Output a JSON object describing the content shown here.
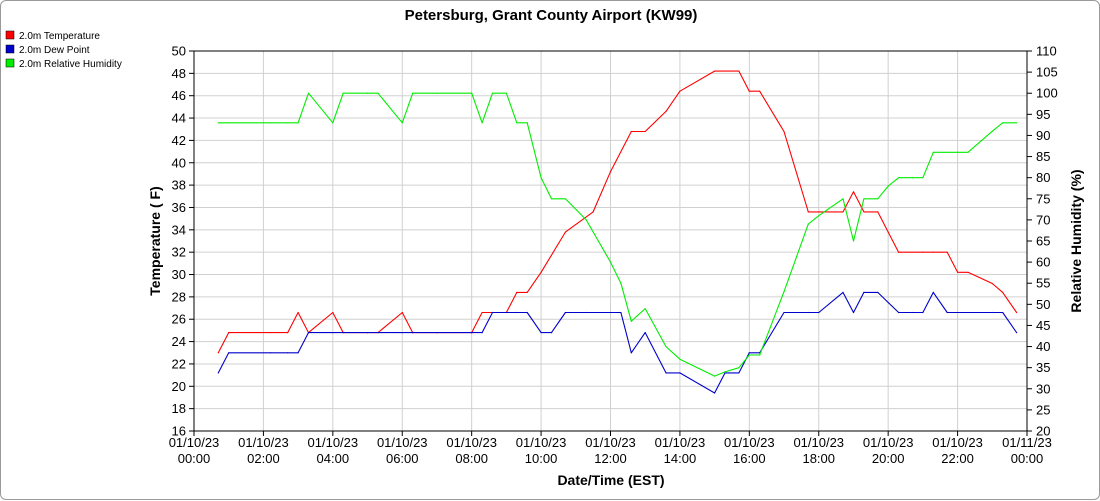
{
  "chart_data": {
    "type": "line",
    "title": "Petersburg, Grant County Airport (KW99)",
    "xlabel": "Date/Time (EST)",
    "ylabel": "Temperature ( F)",
    "y2label": "Relative Humidity (%)",
    "xlim": [
      0,
      24
    ],
    "ylim": [
      16,
      50
    ],
    "y2lim": [
      20,
      110
    ],
    "grid": true,
    "legend_position": "top-left",
    "x_ticks": [
      {
        "x": 0,
        "line1": "01/10/23",
        "line2": "00:00"
      },
      {
        "x": 2,
        "line1": "01/10/23",
        "line2": "02:00"
      },
      {
        "x": 4,
        "line1": "01/10/23",
        "line2": "04:00"
      },
      {
        "x": 6,
        "line1": "01/10/23",
        "line2": "06:00"
      },
      {
        "x": 8,
        "line1": "01/10/23",
        "line2": "08:00"
      },
      {
        "x": 10,
        "line1": "01/10/23",
        "line2": "10:00"
      },
      {
        "x": 12,
        "line1": "01/10/23",
        "line2": "12:00"
      },
      {
        "x": 14,
        "line1": "01/10/23",
        "line2": "14:00"
      },
      {
        "x": 16,
        "line1": "01/10/23",
        "line2": "16:00"
      },
      {
        "x": 18,
        "line1": "01/10/23",
        "line2": "18:00"
      },
      {
        "x": 20,
        "line1": "01/10/23",
        "line2": "20:00"
      },
      {
        "x": 22,
        "line1": "01/10/23",
        "line2": "22:00"
      },
      {
        "x": 24,
        "line1": "01/11/23",
        "line2": "00:00"
      }
    ],
    "y_ticks": [
      "16",
      "18",
      "20",
      "22",
      "24",
      "26",
      "28",
      "30",
      "32",
      "34",
      "36",
      "38",
      "40",
      "42",
      "44",
      "46",
      "48",
      "50"
    ],
    "y2_ticks": [
      "20",
      "25",
      "30",
      "35",
      "40",
      "45",
      "50",
      "55",
      "60",
      "65",
      "70",
      "75",
      "80",
      "85",
      "90",
      "95",
      "100",
      "105",
      "110"
    ],
    "series": [
      {
        "name": "2.0m Temperature",
        "color": "#ff0000",
        "axis": "left",
        "x": [
          0.7,
          1.0,
          2.2,
          2.7,
          3.0,
          3.3,
          4.0,
          4.3,
          5.0,
          5.3,
          6.0,
          6.3,
          7.0,
          8.0,
          8.3,
          8.6,
          9.0,
          9.3,
          9.6,
          10.0,
          10.7,
          11.5,
          12.0,
          12.6,
          13.0,
          13.6,
          14.0,
          15.0,
          15.7,
          16.0,
          16.3,
          17.0,
          17.7,
          18.0,
          18.7,
          19.0,
          19.3,
          19.7,
          20.0,
          20.3,
          21.0,
          21.3,
          21.7,
          22.0,
          22.3,
          23.0,
          23.3,
          23.7
        ],
        "values": [
          23.0,
          24.8,
          24.8,
          24.8,
          26.6,
          24.8,
          26.6,
          24.8,
          24.8,
          24.8,
          26.6,
          24.8,
          24.8,
          24.8,
          26.6,
          26.6,
          26.6,
          28.4,
          28.4,
          30.2,
          33.8,
          35.6,
          39.2,
          42.8,
          42.8,
          44.6,
          46.4,
          48.2,
          48.2,
          46.4,
          46.4,
          42.8,
          35.6,
          35.6,
          35.6,
          37.4,
          35.6,
          35.6,
          33.8,
          32.0,
          32.0,
          32.0,
          32.0,
          30.2,
          30.2,
          29.2,
          28.4,
          26.6
        ]
      },
      {
        "name": "2.0m Dew Point",
        "color": "#0000cc",
        "axis": "left",
        "x": [
          0.7,
          1.0,
          2.2,
          2.7,
          3.0,
          3.3,
          4.0,
          4.3,
          5.0,
          5.3,
          6.0,
          6.3,
          7.0,
          8.0,
          8.3,
          8.6,
          9.0,
          9.3,
          9.6,
          10.0,
          10.3,
          10.7,
          11.3,
          12.0,
          12.3,
          12.6,
          13.0,
          13.6,
          14.0,
          15.0,
          15.3,
          15.7,
          16.0,
          16.3,
          17.0,
          17.7,
          18.0,
          18.7,
          19.0,
          19.3,
          19.7,
          20.0,
          20.3,
          20.7,
          21.0,
          21.3,
          21.7,
          22.0,
          22.3,
          23.0,
          23.3,
          23.7
        ],
        "values": [
          21.2,
          23.0,
          23.0,
          23.0,
          23.0,
          24.8,
          24.8,
          24.8,
          24.8,
          24.8,
          24.8,
          24.8,
          24.8,
          24.8,
          24.8,
          26.6,
          26.6,
          26.6,
          26.6,
          24.8,
          24.8,
          26.6,
          26.6,
          26.6,
          26.6,
          23.0,
          24.8,
          21.2,
          21.2,
          19.4,
          21.2,
          21.2,
          23.0,
          23.0,
          26.6,
          26.6,
          26.6,
          28.4,
          26.6,
          28.4,
          28.4,
          27.5,
          26.6,
          26.6,
          26.6,
          28.4,
          26.6,
          26.6,
          26.6,
          26.6,
          26.6,
          24.8
        ]
      },
      {
        "name": "2.0m Relative Humidity",
        "color": "#00ee00",
        "axis": "right",
        "x": [
          0.7,
          1.0,
          2.2,
          2.7,
          3.0,
          3.3,
          4.0,
          4.3,
          5.0,
          5.3,
          6.0,
          6.3,
          7.0,
          8.0,
          8.3,
          8.6,
          9.0,
          9.3,
          9.6,
          10.0,
          10.3,
          10.7,
          11.3,
          12.0,
          12.3,
          12.6,
          13.0,
          13.6,
          14.0,
          15.0,
          15.3,
          15.7,
          16.0,
          16.3,
          17.0,
          17.7,
          18.0,
          18.7,
          19.0,
          19.3,
          19.7,
          20.0,
          20.3,
          20.7,
          21.0,
          21.3,
          21.7,
          22.0,
          22.3,
          23.0,
          23.3,
          23.7
        ],
        "values": [
          93,
          93,
          93,
          93,
          93,
          100,
          93,
          100,
          100,
          100,
          93,
          100,
          100,
          100,
          93,
          100,
          100,
          93,
          93,
          80,
          75,
          75,
          70,
          60,
          55,
          46,
          49,
          40,
          37,
          33,
          34,
          35,
          38,
          38,
          53,
          69,
          71,
          75,
          65,
          75,
          75,
          78,
          80,
          80,
          80,
          86,
          86,
          86,
          86,
          91,
          93,
          93
        ]
      }
    ]
  }
}
